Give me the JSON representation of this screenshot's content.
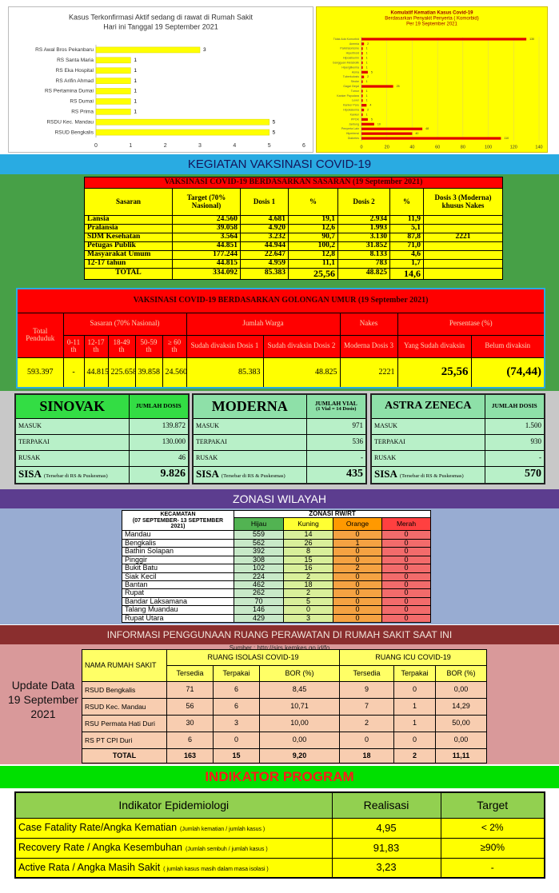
{
  "chart_data": [
    {
      "type": "bar",
      "orientation": "horizontal",
      "title": "Kasus Terkonfirmasi Aktif sedang di rawat di Rumah Sakit",
      "subtitle": "Hari ini Tanggal 19 September 2021",
      "categories": [
        "RS Awal Bros Pekanbaru",
        "RS Santa Maria",
        "RS Eka Hospital",
        "RS Arifin Ahmad",
        "RS Pertamina Dumai",
        "RS Dumai",
        "RS Prima",
        "RSDU Kec. Mandau",
        "RSUD Bengkalis"
      ],
      "values": [
        3,
        1,
        1,
        1,
        1,
        1,
        1,
        5,
        5
      ],
      "color": "#ffff00",
      "xlim": [
        0,
        6
      ],
      "xticks": [
        0,
        1,
        2,
        3,
        4,
        5,
        6
      ],
      "grid": false
    },
    {
      "type": "bar",
      "orientation": "horizontal",
      "title": "Komulatif Kematian Kasus Covid-19",
      "subtitle": "Berdasarkan Penyakit Penyerta ( Komorbid)",
      "date_label": "Per 19 September 2021",
      "categories": [
        "Tidak Ada Komorbid",
        "Anemia",
        "Parkinsonisme",
        "Hipertiroid",
        "Hipoalbumin",
        "Gangguan Metabolik",
        "Hiperglikemia",
        "Asma",
        "Tuberkulosis",
        "Stroke",
        "Gagal Ginjal",
        "Tumor",
        "Kanker Payudara",
        "Lever",
        "Kanker Paru",
        "Hipokalemia",
        "Kanker",
        "PPOK",
        "Jantung",
        "Penyerta Lain",
        "Hipertensi",
        "Diabetes"
      ],
      "values": [
        130,
        2,
        1,
        1,
        1,
        1,
        1,
        5,
        2,
        1,
        25,
        1,
        1,
        1,
        4,
        2,
        1,
        5,
        10,
        48,
        40,
        110
      ],
      "color": "#e00000",
      "xlim": [
        0,
        140
      ],
      "xticks": [
        0,
        20,
        40,
        60,
        80,
        100,
        120,
        140
      ],
      "grid": true
    }
  ],
  "vaccination_header": "KEGIATAN VAKSINASI COVID-19",
  "vaccination_by_target": {
    "title": "VAKSINASI COVID-19 BERDASARKAN SASARAN (19 September 2021)",
    "headers": [
      "Sasaran",
      "Target (70% Nasional)",
      "Dosis 1",
      "%",
      "Dosis 2",
      "%",
      "Dosis 3 (Moderna) khusus Nakes"
    ],
    "rows": [
      [
        "Lansia",
        "24.560",
        "4.681",
        "19,1",
        "2.934",
        "11,9"
      ],
      [
        "Pralansia",
        "39.058",
        "4.920",
        "12,6",
        "1.993",
        "5,1"
      ],
      [
        "SDM Kesehatan",
        "3.564",
        "3.232",
        "90,7",
        "3.130",
        "87,8",
        "2221"
      ],
      [
        "Petugas Publik",
        "44.851",
        "44.944",
        "100,2",
        "31.852",
        "71,0"
      ],
      [
        "Masyarakat Umum",
        "177.244",
        "22.647",
        "12,8",
        "8.133",
        "4,6"
      ],
      [
        "12-17 tahun",
        "44.815",
        "4.959",
        "11,1",
        "783",
        "1,7"
      ]
    ],
    "total": [
      "TOTAL",
      "334.092",
      "85.383",
      "25,56",
      "48.825",
      "14,6"
    ]
  },
  "vaccination_by_age": {
    "title": "VAKSINASI COVID-19 BERDASARKAN GOLONGAN UMUR (19 September 2021)",
    "total_population": "Total Penduduk",
    "target": "Sasaran (70% Nasional)",
    "target_groups": [
      "0-11 th",
      "12-17 th",
      "18-49 th",
      "50-59 th",
      "≥ 60 th"
    ],
    "residents": "Jumlah Warga",
    "resident_groups": [
      "Sudah divaksin Dosis 1",
      "Sudah divaksin Dosis 2"
    ],
    "nakes": "Nakes",
    "nakes_groups": [
      "Moderna Dosis 3"
    ],
    "percentage": "Persentase (%)",
    "percentage_groups": [
      "Yang Sudah divaksin",
      "Belum divaksin"
    ],
    "values": [
      "593.397",
      "-",
      "44.815",
      "225.658",
      "39.858",
      "24.560",
      "85.383",
      "48.825",
      "2221",
      "25,56",
      "(74,44)"
    ]
  },
  "vaccine_stock": [
    {
      "name": "SINOVAK",
      "unit": "JUMLAH DOSIS",
      "rows": [
        [
          "MASUK",
          "139.872"
        ],
        [
          "TERPAKAI",
          "130.000"
        ],
        [
          "RUSAK",
          "46"
        ]
      ],
      "remaining_label": "SISA",
      "remaining_note": "(Tersebar di RS & Puskesmas)",
      "remaining": "9.826"
    },
    {
      "name": "MODERNA",
      "unit": "JUMLAH VIAL",
      "unit_note": "(1 Vial = 14 Dosis)",
      "rows": [
        [
          "MASUK",
          "971"
        ],
        [
          "TERPAKAI",
          "536"
        ],
        [
          "RUSAK",
          "-"
        ]
      ],
      "remaining_label": "SISA",
      "remaining_note": "(Tersebar di RS & Puskesmas)",
      "remaining": "435"
    },
    {
      "name": "ASTRA ZENECA",
      "unit": "JUMLAH DOSIS",
      "rows": [
        [
          "MASUK",
          "1.500"
        ],
        [
          "TERPAKAI",
          "930"
        ],
        [
          "RUSAK",
          "-"
        ]
      ],
      "remaining_label": "SISA",
      "remaining_note": "(Tersebar di RS & Puskesmas)",
      "remaining": "570"
    }
  ],
  "zoning": {
    "title": "ZONASI WILAYAH",
    "district_header": "KECAMATAN",
    "period": "(07 SEPTEMBER- 13 SEPTEMBER 2021)",
    "zone_header": "ZONASI RW/RT",
    "zones": [
      "Hijau",
      "Kuning",
      "Orange",
      "Merah"
    ],
    "rows": [
      [
        "Mandau",
        "559",
        "14",
        "0",
        "0"
      ],
      [
        "Bengkalis",
        "562",
        "26",
        "1",
        "0"
      ],
      [
        "Bathin Solapan",
        "392",
        "8",
        "0",
        "0"
      ],
      [
        "Pinggir",
        "308",
        "15",
        "0",
        "0"
      ],
      [
        "Bukit Batu",
        "102",
        "16",
        "2",
        "0"
      ],
      [
        "Siak Kecil",
        "224",
        "2",
        "0",
        "0"
      ],
      [
        "Bantan",
        "462",
        "18",
        "0",
        "0"
      ],
      [
        "Rupat",
        "262",
        "2",
        "0",
        "0"
      ],
      [
        "Bandar Laksamana",
        "70",
        "5",
        "0",
        "0"
      ],
      [
        "Talang Muandau",
        "146",
        "0",
        "0",
        "0"
      ],
      [
        "Rupat Utara",
        "429",
        "3",
        "0",
        "0"
      ]
    ]
  },
  "hospital": {
    "title": "INFORMASI PENGGUNAAN RUANG PERAWATAN DI RUMAH SAKIT SAAT INI",
    "source": "Sumber : http://sirs.kemkes.go.id/fo",
    "update_note": "Update Data 19 September 2021",
    "name_header": "NAMA RUMAH SAKIT",
    "isolation_header": "RUANG ISOLASI COVID-19",
    "icu_header": "RUANG ICU COVID-19",
    "subheaders": [
      "Tersedia",
      "Terpakai",
      "BOR (%)"
    ],
    "rows": [
      [
        "RSUD Bengkalis",
        "71",
        "6",
        "8,45",
        "9",
        "0",
        "0,00"
      ],
      [
        "RSUD Kec. Mandau",
        "56",
        "6",
        "10,71",
        "7",
        "1",
        "14,29"
      ],
      [
        "RSU Permata Hati Duri",
        "30",
        "3",
        "10,00",
        "2",
        "1",
        "50,00"
      ],
      [
        "RS PT CPI Duri",
        "6",
        "0",
        "0,00",
        "0",
        "0",
        "0,00"
      ]
    ],
    "total": [
      "TOTAL",
      "163",
      "15",
      "9,20",
      "18",
      "2",
      "11,11"
    ]
  },
  "indicators": {
    "title": "INDIKATOR PROGRAM",
    "headers": [
      "Indikator Epidemiologi",
      "Realisasi",
      "Target"
    ],
    "rows": [
      {
        "name": "Case Fatality Rate/Angka Kematian",
        "note": "(Jumlah kematian / jumlah kasus )",
        "realization": "4,95",
        "target": "< 2%"
      },
      {
        "name": "Recovery Rate / Angka Kesembuhan",
        "note": "(Jumlah sembuh / jumlah kasus )",
        "realization": "91,83",
        "target": "≥90%"
      },
      {
        "name": "Active Rata / Angka Masih Sakit",
        "note": "( jumlah kasus masih dalam masa isolasi )",
        "realization": "3,23",
        "target": "-"
      }
    ]
  }
}
